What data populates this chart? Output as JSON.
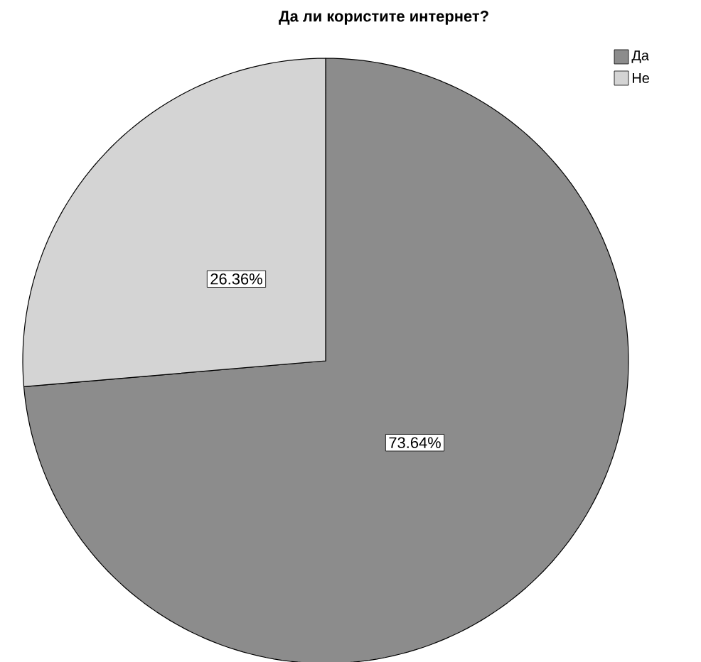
{
  "chart_data": {
    "type": "pie",
    "title": "Да ли користите интернет?",
    "categories": [
      "Да",
      "Не"
    ],
    "values": [
      73.64,
      26.36
    ],
    "value_labels": [
      "73.64%",
      "26.36%"
    ],
    "colors": [
      "#8c8c8c",
      "#d4d4d4"
    ],
    "legend": "top right"
  }
}
